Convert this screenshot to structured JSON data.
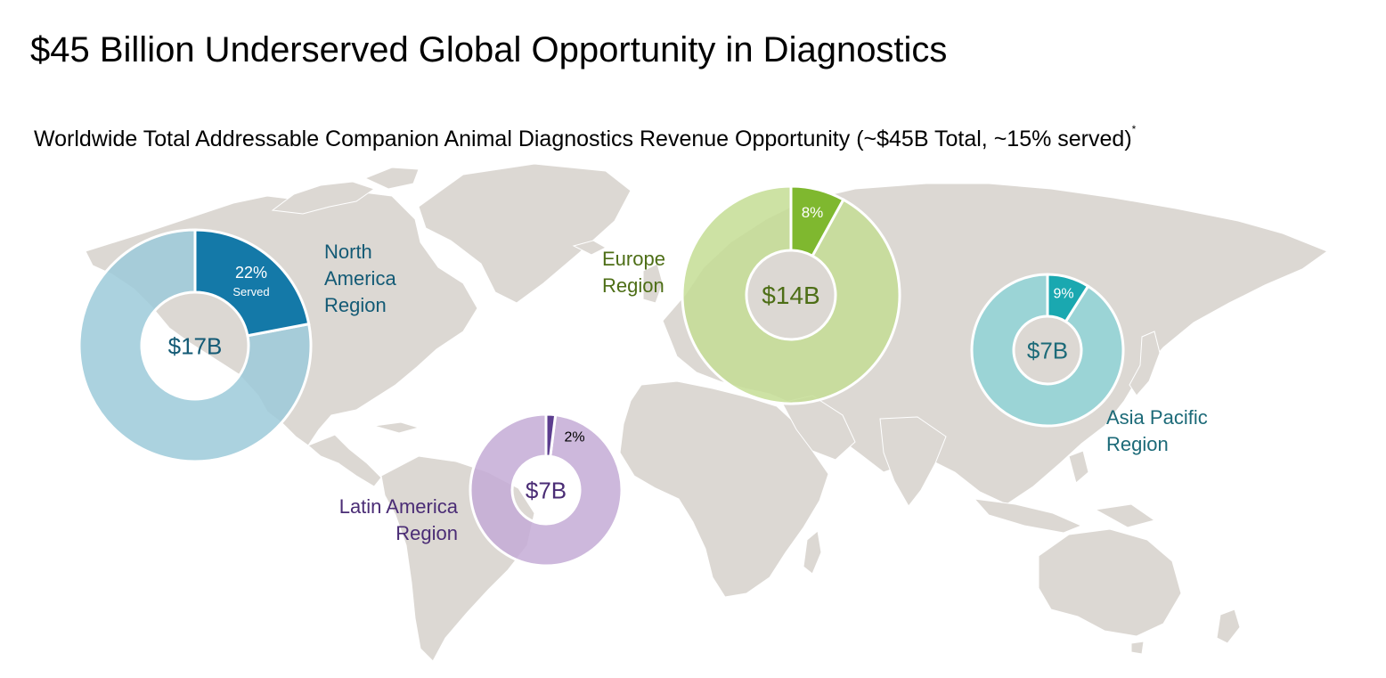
{
  "title": "$45 Billion Underserved Global Opportunity in Diagnostics",
  "subtitle": "Worldwide Total Addressable Companion Animal Diagnostics Revenue Opportunity (~$45B Total, ~15% served)",
  "subtitle_footnote_marker": "*",
  "map_color": "#dcd8d3",
  "chart_data": [
    {
      "type": "pie",
      "region": "north-america",
      "label_lines": [
        "North",
        "America",
        "Region"
      ],
      "total_label": "$17B",
      "total_value": 17,
      "served_percent": 22,
      "served_label": "22%",
      "served_sublabel": "Served",
      "served_color": "#1479a8",
      "unserved_color": "#9ccad9",
      "label_color": "#135a75"
    },
    {
      "type": "pie",
      "region": "europe",
      "label_lines": [
        "Europe",
        "Region"
      ],
      "total_label": "$14B",
      "total_value": 14,
      "served_percent": 8,
      "served_label": "8%",
      "served_color": "#7fb82f",
      "unserved_color": "#c4dd94",
      "label_color": "#4d6e16"
    },
    {
      "type": "pie",
      "region": "latin-america",
      "label_lines": [
        "Latin America",
        "Region"
      ],
      "total_label": "$7B",
      "total_value": 7,
      "served_percent": 2,
      "served_label": "2%",
      "served_color": "#5c3d8f",
      "unserved_color": "#c4acd6",
      "label_color": "#4a2c75"
    },
    {
      "type": "pie",
      "region": "asia-pacific",
      "label_lines": [
        "Asia Pacific",
        "Region"
      ],
      "total_label": "$7B",
      "total_value": 7,
      "served_percent": 9,
      "served_label": "9%",
      "served_color": "#1aa8b0",
      "unserved_color": "#8fd3d6",
      "label_color": "#1c6a78"
    }
  ]
}
